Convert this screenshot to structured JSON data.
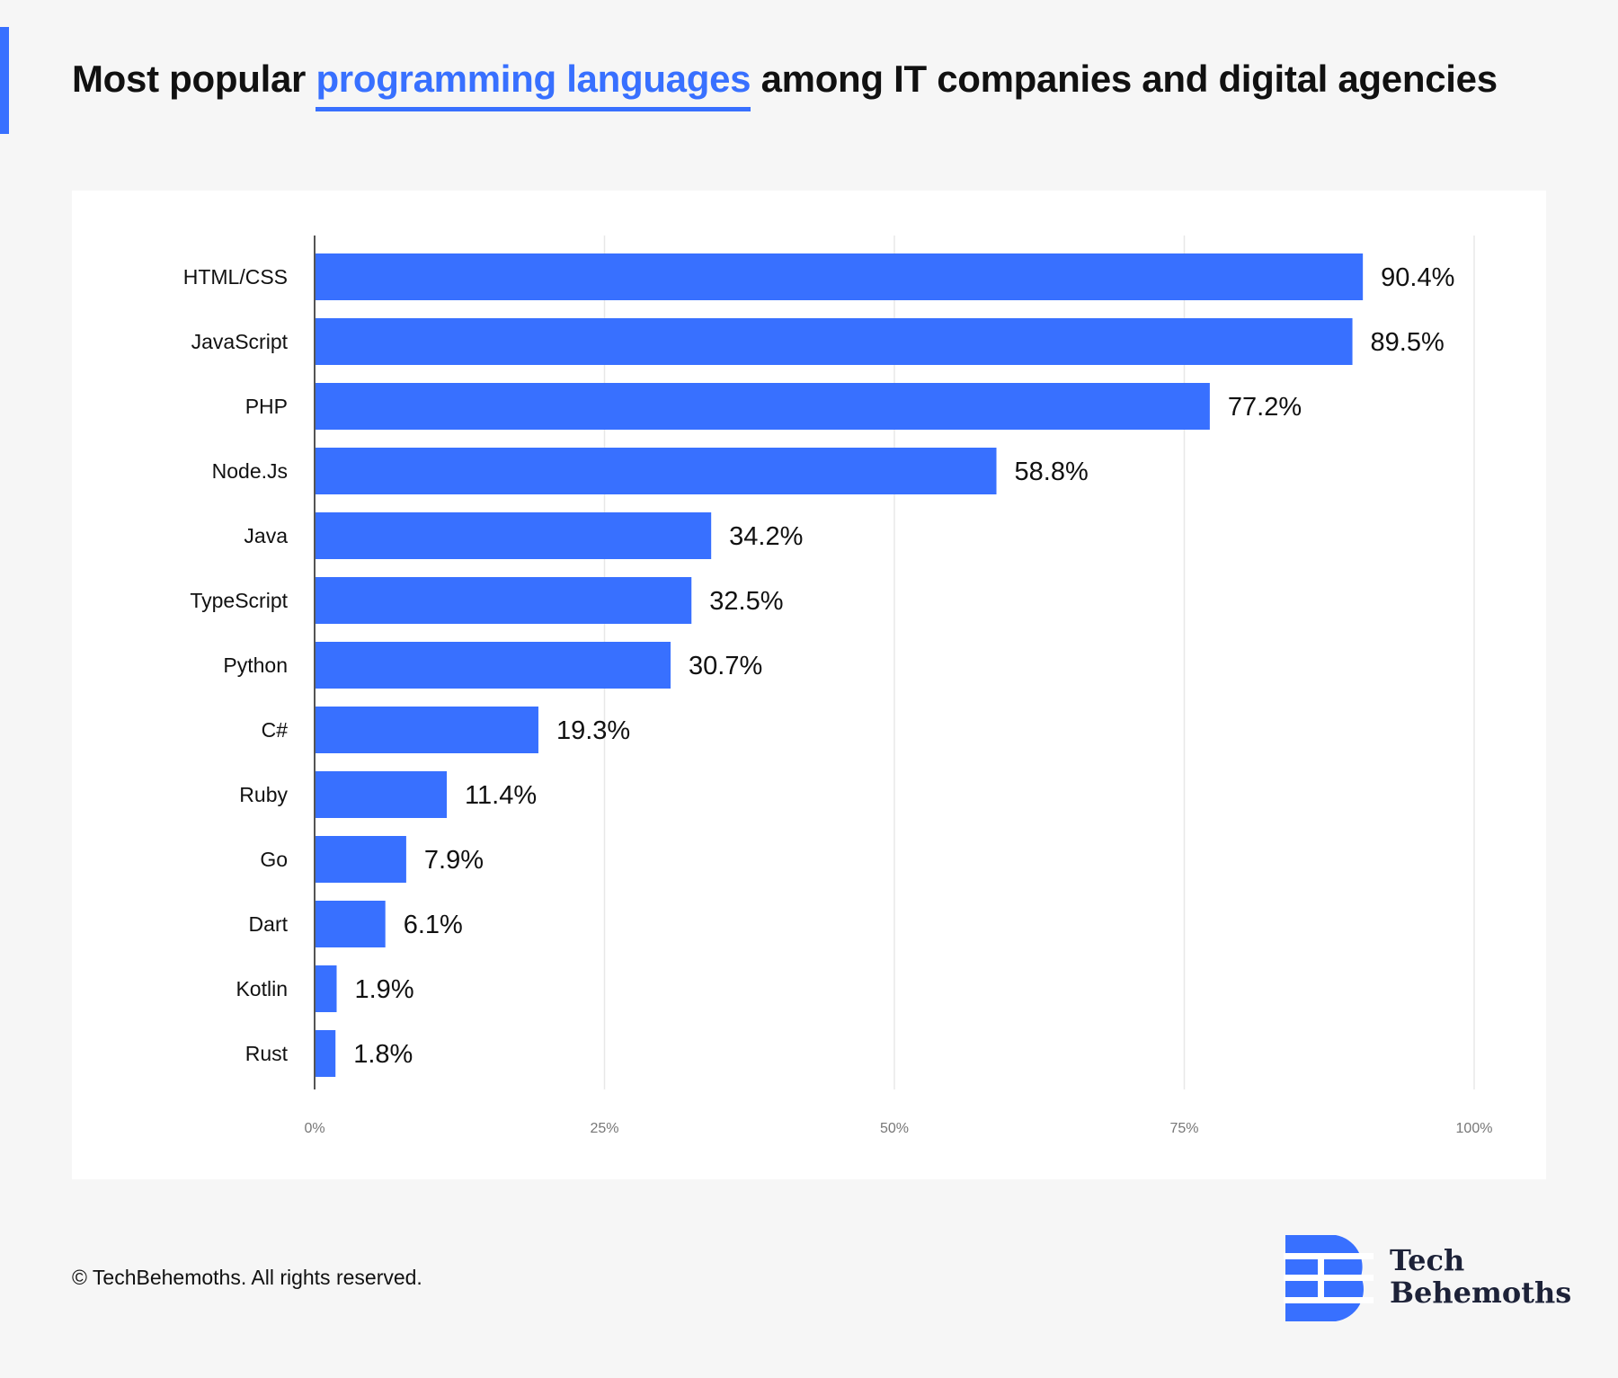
{
  "title": {
    "prefix": "Most popular",
    "highlight": "programming languages",
    "suffix": "among IT companies and digital agencies"
  },
  "colors": {
    "accent": "#3870ff",
    "bar": "#3870ff",
    "text": "#111111",
    "grid": "#e8e8e8",
    "axis": "#555555",
    "tick": "#777777"
  },
  "chart_data": {
    "type": "bar",
    "orientation": "horizontal",
    "categories": [
      "HTML/CSS",
      "JavaScript",
      "PHP",
      "Node.Js",
      "Java",
      "TypeScript",
      "Python",
      "C#",
      "Ruby",
      "Go",
      "Dart",
      "Kotlin",
      "Rust"
    ],
    "values": [
      90.4,
      89.5,
      77.2,
      58.8,
      34.2,
      32.5,
      30.7,
      19.3,
      11.4,
      7.9,
      6.1,
      1.9,
      1.8
    ],
    "value_labels": [
      "90.4%",
      "89.5%",
      "77.2%",
      "58.8%",
      "34.2%",
      "32.5%",
      "30.7%",
      "19.3%",
      "11.4%",
      "7.9%",
      "6.1%",
      "1.9%",
      "1.8%"
    ],
    "title": "",
    "xlabel": "",
    "ylabel": "",
    "xlim": [
      0,
      100
    ],
    "x_ticks": [
      0,
      25,
      50,
      75,
      100
    ],
    "x_tick_labels": [
      "0%",
      "25%",
      "50%",
      "75%",
      "100%"
    ],
    "grid": true,
    "legend": "none"
  },
  "footer": {
    "copyright": "© TechBehemoths. All rights reserved."
  },
  "logo": {
    "line1": "Tech",
    "line2": "Behemoths",
    "icon": "techbehemoths-b-logo-icon"
  }
}
